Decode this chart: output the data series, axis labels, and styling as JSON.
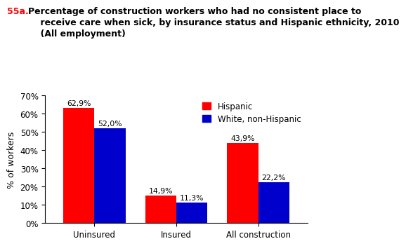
{
  "title_prefix": "55a.",
  "title_line1": " Percentage of construction workers who had no consistent place to",
  "title_line2": "      receive care when sick, by insurance status and Hispanic ethnicity, 2010",
  "title_line3": "      (All employment)",
  "categories": [
    "Uninsured",
    "Insured",
    "All construction"
  ],
  "hispanic_values": [
    62.9,
    14.9,
    43.9
  ],
  "white_values": [
    52.0,
    11.3,
    22.2
  ],
  "hispanic_labels": [
    "62,9%",
    "14,9%",
    "43,9%"
  ],
  "white_labels": [
    "52,0%",
    "11,3%",
    "22,2%"
  ],
  "hispanic_color": "#FF0000",
  "white_color": "#0000CC",
  "ylabel": "% of workers",
  "ylim": [
    0,
    70
  ],
  "yticks": [
    0,
    10,
    20,
    30,
    40,
    50,
    60,
    70
  ],
  "ytick_labels": [
    "0%",
    "10%",
    "20%",
    "30%",
    "40%",
    "50%",
    "60%",
    "70%"
  ],
  "legend_hispanic": "Hispanic",
  "legend_white": "White, non-Hispanic",
  "bar_width": 0.38,
  "title_prefix_color": "#FF0000",
  "title_body_color": "#000000",
  "label_fontsize": 7.8,
  "axis_fontsize": 8.5,
  "ylabel_fontsize": 9,
  "legend_fontsize": 8.5
}
